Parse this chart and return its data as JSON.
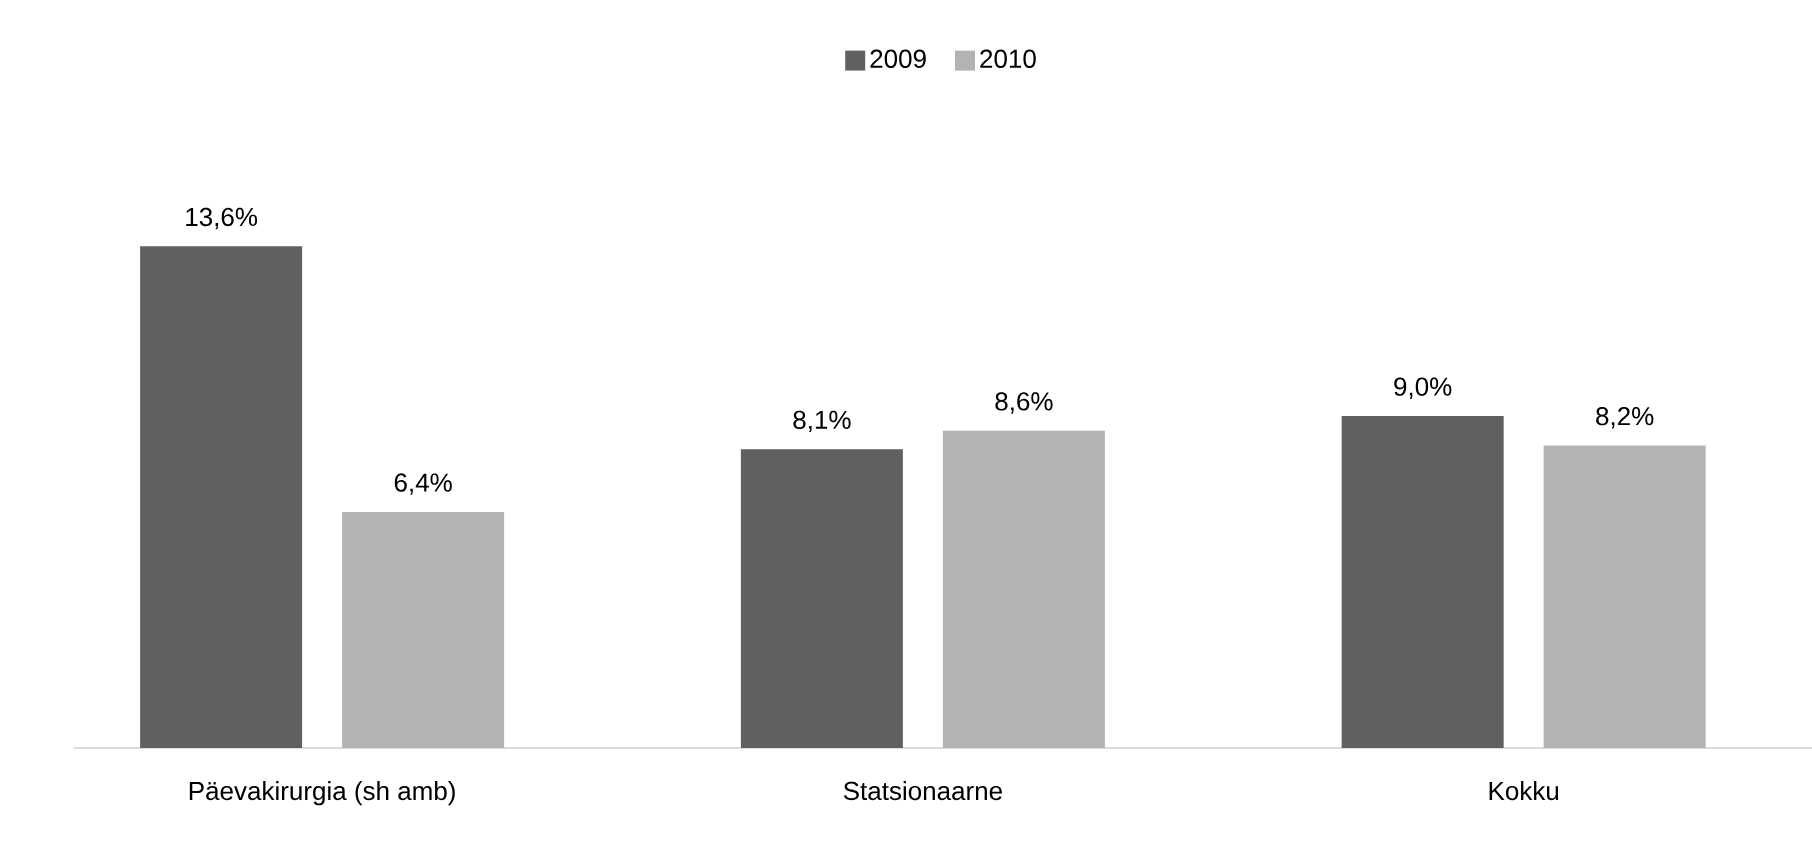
{
  "chart_data": {
    "type": "bar",
    "categories": [
      "Päevakirurgia (sh amb)",
      "Statsionaarne",
      "Kokku"
    ],
    "series": [
      {
        "name": "2009",
        "color": "#606060",
        "values": [
          13.6,
          8.1,
          9.0
        ],
        "value_labels": [
          "13,6%",
          "8,1%",
          "9,0%"
        ]
      },
      {
        "name": "2010",
        "color": "#b3b3b3",
        "values": [
          6.4,
          8.6,
          8.2
        ],
        "value_labels": [
          "6,4%",
          "8,6%",
          "8,2%"
        ]
      }
    ],
    "legend": "top"
  }
}
